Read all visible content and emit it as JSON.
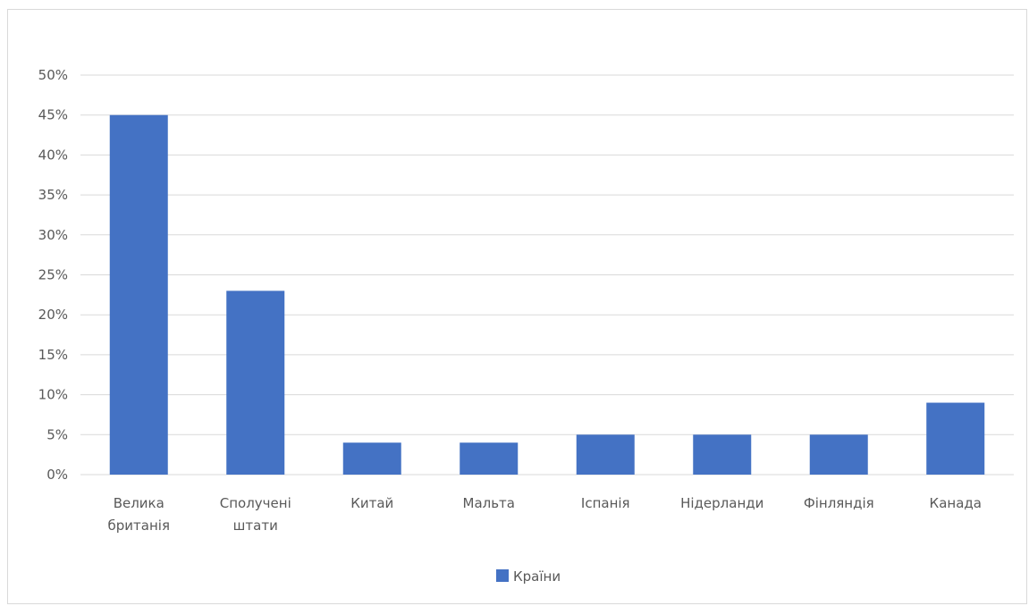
{
  "chart_data": {
    "type": "bar",
    "categories": [
      [
        "Велика",
        "британія"
      ],
      [
        "Сполучені",
        "штати"
      ],
      [
        "Китай"
      ],
      [
        "Мальта"
      ],
      [
        "Іспанія"
      ],
      [
        "Нідерланди"
      ],
      [
        "Фінляндія"
      ],
      [
        "Канада"
      ]
    ],
    "series": [
      {
        "name": "Країни",
        "values": [
          45,
          23,
          4,
          4,
          5,
          5,
          5,
          9
        ]
      }
    ],
    "ylim": [
      0,
      50
    ],
    "yticks": [
      0,
      5,
      10,
      15,
      20,
      25,
      30,
      35,
      40,
      45,
      50
    ],
    "ytick_labels": [
      "0%",
      "5%",
      "10%",
      "15%",
      "20%",
      "25%",
      "30%",
      "35%",
      "40%",
      "45%",
      "50%"
    ],
    "title": "",
    "xlabel": "",
    "ylabel": "",
    "grid": true,
    "legend_position": "bottom",
    "colors": {
      "bar": "#4472c4",
      "grid": "#d9d9d9",
      "text": "#595959"
    }
  }
}
